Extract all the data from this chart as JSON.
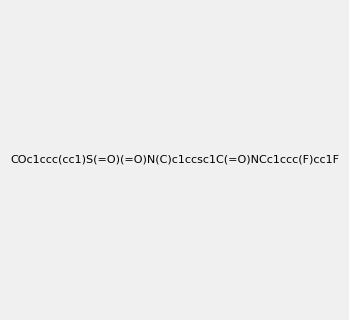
{
  "smiles": "COc1ccc(cc1)S(=O)(=O)N(C)c1ccsc1C(=O)NCc1ccc(F)cc1F",
  "image_size": 300,
  "background_color": "#f0f0f0",
  "atom_colors": {
    "F": "#ff00ff",
    "S": "#cccc00",
    "N": "#0000ff",
    "O": "#ff0000"
  },
  "title": ""
}
